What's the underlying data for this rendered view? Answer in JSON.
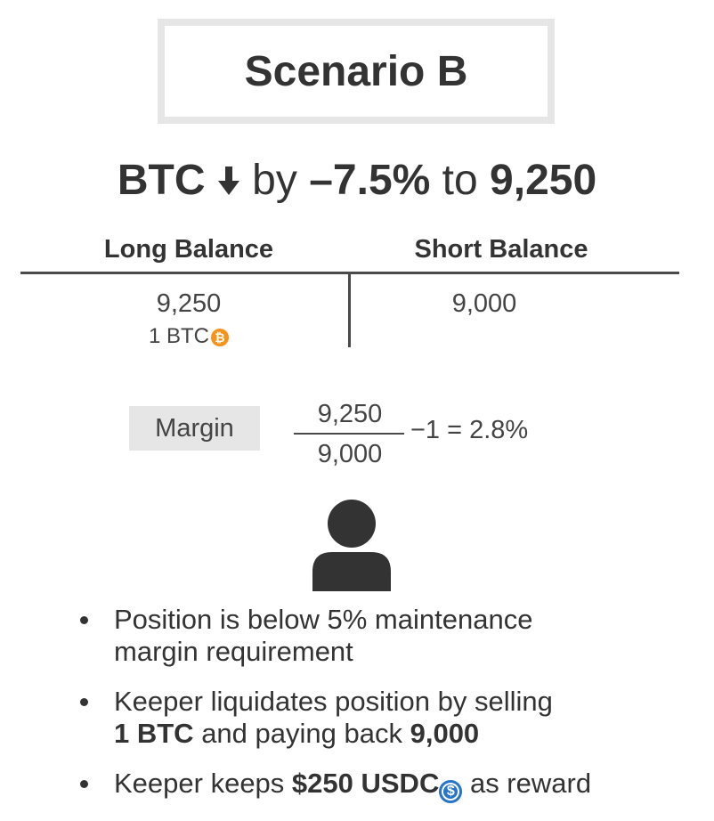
{
  "title": "Scenario B",
  "headline": {
    "asset": "BTC",
    "by": "by",
    "change": "–7.5%",
    "to": "to",
    "price": "9,250"
  },
  "table": {
    "long_header": "Long Balance",
    "short_header": "Short Balance",
    "long_value": "9,250",
    "long_sub": "1 BTC",
    "short_value": "9,000"
  },
  "margin": {
    "label": "Margin",
    "numerator": "9,250",
    "denominator": "9,000",
    "tail": "−1 = 2.8%"
  },
  "bullets": {
    "b1_line1": "Position is below 5% maintenance",
    "b1_line2": "margin requirement",
    "b2_line1": "Keeper liquidates position by selling",
    "b2_bold1": "1 BTC",
    "b2_mid": " and paying back ",
    "b2_bold2": "9,000",
    "b3_pre": "Keeper keeps ",
    "b3_bold": "$250 USDC",
    "b3_post": " as reward"
  },
  "icons": {
    "down_arrow": "arrow-down-icon",
    "btc_coin": "bitcoin-coin-icon",
    "usdc_coin": "usdc-coin-icon",
    "keeper": "person-icon"
  },
  "colors": {
    "btc_orange": "#f7931a",
    "usdc_blue": "#2775ca",
    "text_dark": "#333333",
    "chip_gray": "#e6e6e6"
  }
}
